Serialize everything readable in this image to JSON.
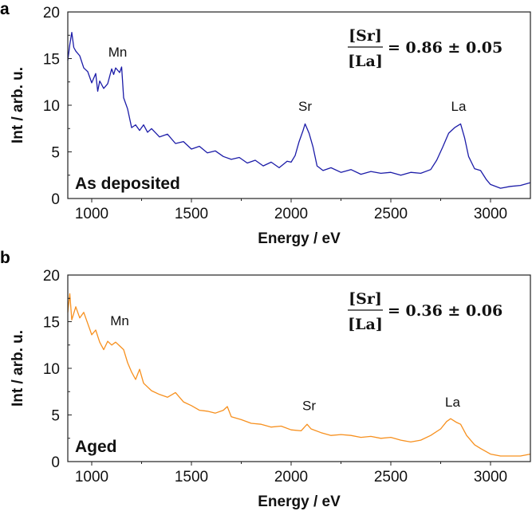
{
  "chart_data": [
    {
      "type": "line",
      "panel_label": "a",
      "condition_label": "As deposited",
      "formula": {
        "numerator": "[Sr]",
        "denominator": "[La]",
        "value": "= 0.86 ± 0.05"
      },
      "xlabel": "Energy / eV",
      "ylabel": "Int / arb. u.",
      "xlim": [
        880,
        3200
      ],
      "ylim": [
        0,
        20
      ],
      "xticks": [
        1000,
        1500,
        2000,
        2500,
        3000
      ],
      "yticks": [
        0,
        5,
        10,
        15,
        20
      ],
      "color": "#1c1ca8",
      "annotations": [
        {
          "text": "Mn",
          "x": 1130,
          "y": 15.2
        },
        {
          "text": "Sr",
          "x": 2070,
          "y": 9.4
        },
        {
          "text": "La",
          "x": 2840,
          "y": 9.4
        }
      ],
      "x": [
        880,
        890,
        900,
        910,
        920,
        940,
        960,
        980,
        1000,
        1020,
        1030,
        1040,
        1060,
        1080,
        1100,
        1110,
        1120,
        1140,
        1150,
        1160,
        1180,
        1200,
        1220,
        1240,
        1260,
        1280,
        1300,
        1340,
        1380,
        1420,
        1460,
        1500,
        1540,
        1580,
        1620,
        1660,
        1700,
        1740,
        1780,
        1820,
        1860,
        1900,
        1940,
        1980,
        2000,
        2020,
        2040,
        2060,
        2070,
        2090,
        2110,
        2130,
        2160,
        2200,
        2250,
        2300,
        2350,
        2400,
        2450,
        2500,
        2550,
        2600,
        2650,
        2700,
        2730,
        2760,
        2790,
        2820,
        2850,
        2870,
        2890,
        2920,
        2950,
        2980,
        3000,
        3050,
        3100,
        3150,
        3200
      ],
      "y": [
        14.8,
        16.5,
        17.8,
        16.2,
        15.8,
        15.3,
        14.0,
        13.6,
        12.4,
        13.4,
        11.5,
        12.6,
        11.8,
        12.3,
        13.9,
        13.3,
        14.0,
        13.5,
        14.1,
        10.8,
        9.6,
        7.6,
        7.9,
        7.3,
        7.9,
        7.1,
        7.5,
        6.6,
        6.9,
        5.9,
        6.1,
        5.3,
        5.6,
        4.9,
        5.1,
        4.5,
        4.2,
        4.4,
        3.8,
        4.1,
        3.5,
        3.9,
        3.3,
        4.0,
        3.9,
        4.6,
        6.1,
        7.3,
        8.0,
        7.0,
        5.5,
        3.5,
        3.0,
        3.3,
        2.8,
        3.1,
        2.6,
        2.9,
        2.7,
        2.8,
        2.5,
        2.8,
        2.7,
        3.1,
        4.1,
        5.5,
        7.0,
        7.6,
        8.0,
        6.5,
        4.5,
        3.2,
        3.0,
        2.0,
        1.5,
        1.1,
        1.3,
        1.4,
        1.7
      ]
    },
    {
      "type": "line",
      "panel_label": "b",
      "condition_label": "Aged",
      "formula": {
        "numerator": "[Sr]",
        "denominator": "[La]",
        "value": "= 0.36 ± 0.06"
      },
      "xlabel": "Energy / eV",
      "ylabel": "Int / arb. u.",
      "xlim": [
        880,
        3200
      ],
      "ylim": [
        0,
        20
      ],
      "xticks": [
        1000,
        1500,
        2000,
        2500,
        3000
      ],
      "yticks": [
        0,
        5,
        10,
        15,
        20
      ],
      "color": "#f7901e",
      "annotations": [
        {
          "text": "Mn",
          "x": 1140,
          "y": 14.6
        },
        {
          "text": "Sr",
          "x": 2090,
          "y": 5.5
        },
        {
          "text": "La",
          "x": 2810,
          "y": 5.9
        }
      ],
      "x": [
        880,
        890,
        900,
        920,
        940,
        960,
        980,
        1000,
        1020,
        1040,
        1060,
        1080,
        1100,
        1120,
        1140,
        1160,
        1180,
        1200,
        1220,
        1240,
        1260,
        1300,
        1340,
        1380,
        1420,
        1460,
        1500,
        1540,
        1580,
        1620,
        1660,
        1680,
        1700,
        1750,
        1800,
        1850,
        1900,
        1950,
        2000,
        2050,
        2080,
        2100,
        2150,
        2200,
        2250,
        2300,
        2350,
        2400,
        2450,
        2500,
        2550,
        2600,
        2650,
        2700,
        2750,
        2780,
        2800,
        2830,
        2850,
        2880,
        2920,
        2950,
        3000,
        3050,
        3100,
        3150,
        3200
      ],
      "y": [
        16.0,
        18.0,
        15.2,
        16.6,
        15.4,
        16.0,
        14.8,
        13.6,
        14.1,
        12.8,
        12.0,
        12.9,
        12.5,
        12.8,
        12.4,
        12.0,
        10.6,
        9.6,
        8.8,
        9.9,
        8.4,
        7.6,
        7.2,
        6.9,
        7.4,
        6.4,
        6.0,
        5.5,
        5.4,
        5.2,
        5.5,
        5.9,
        4.8,
        4.5,
        4.1,
        4.0,
        3.7,
        3.8,
        3.4,
        3.3,
        4.0,
        3.5,
        3.1,
        2.8,
        2.9,
        2.8,
        2.6,
        2.7,
        2.5,
        2.6,
        2.3,
        2.1,
        2.3,
        2.8,
        3.5,
        4.3,
        4.6,
        4.2,
        4.0,
        2.8,
        1.8,
        1.4,
        0.8,
        0.6,
        0.6,
        0.6,
        0.8
      ]
    }
  ]
}
